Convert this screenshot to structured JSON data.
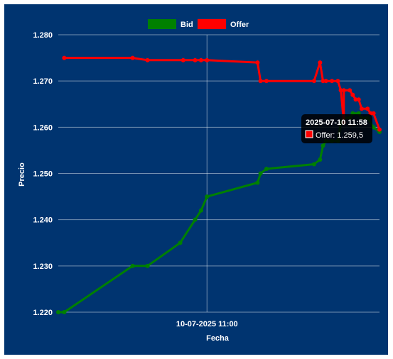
{
  "chart_data": {
    "type": "line",
    "title": "",
    "xlabel": "Fecha",
    "ylabel": "Precio",
    "x_range": [
      "2025-07-10 10:10",
      "2025-07-10 11:58"
    ],
    "ylim": [
      1.22,
      1.28
    ],
    "y_ticks": [
      "1.220",
      "1.230",
      "1.240",
      "1.250",
      "1.260",
      "1.270",
      "1.280"
    ],
    "x_ticks": [
      {
        "x": "2025-07-10 11:00",
        "label": "10-07-2025 11:00"
      }
    ],
    "grid": true,
    "legend_position": "top",
    "series": [
      {
        "name": "Bid",
        "color": "#008000",
        "points": [
          {
            "x": "2025-07-10 10:10",
            "y": 1.22
          },
          {
            "x": "2025-07-10 10:12",
            "y": 1.22
          },
          {
            "x": "2025-07-10 10:35",
            "y": 1.23
          },
          {
            "x": "2025-07-10 10:40",
            "y": 1.23
          },
          {
            "x": "2025-07-10 10:51",
            "y": 1.235
          },
          {
            "x": "2025-07-10 10:56",
            "y": 1.24
          },
          {
            "x": "2025-07-10 10:58",
            "y": 1.242
          },
          {
            "x": "2025-07-10 11:00",
            "y": 1.245
          },
          {
            "x": "2025-07-10 11:17",
            "y": 1.248
          },
          {
            "x": "2025-07-10 11:18",
            "y": 1.25
          },
          {
            "x": "2025-07-10 11:20",
            "y": 1.251
          },
          {
            "x": "2025-07-10 11:36",
            "y": 1.252
          },
          {
            "x": "2025-07-10 11:38",
            "y": 1.253
          },
          {
            "x": "2025-07-10 11:39",
            "y": 1.256
          },
          {
            "x": "2025-07-10 11:40",
            "y": 1.257
          },
          {
            "x": "2025-07-10 11:42",
            "y": 1.257
          },
          {
            "x": "2025-07-10 11:44",
            "y": 1.257
          },
          {
            "x": "2025-07-10 11:45",
            "y": 1.261
          },
          {
            "x": "2025-07-10 11:46",
            "y": 1.262
          },
          {
            "x": "2025-07-10 11:48",
            "y": 1.262
          },
          {
            "x": "2025-07-10 11:49",
            "y": 1.263
          },
          {
            "x": "2025-07-10 11:51",
            "y": 1.263
          },
          {
            "x": "2025-07-10 11:52",
            "y": 1.262
          },
          {
            "x": "2025-07-10 11:54",
            "y": 1.262
          },
          {
            "x": "2025-07-10 11:56",
            "y": 1.26
          },
          {
            "x": "2025-07-10 11:58",
            "y": 1.259
          },
          {
            "x": "2025-07-10 11:58",
            "y": 1.259
          }
        ]
      },
      {
        "name": "Offer",
        "color": "#ff0000",
        "points": [
          {
            "x": "2025-07-10 10:12",
            "y": 1.275
          },
          {
            "x": "2025-07-10 10:35",
            "y": 1.275
          },
          {
            "x": "2025-07-10 10:40",
            "y": 1.2745
          },
          {
            "x": "2025-07-10 10:52",
            "y": 1.2745
          },
          {
            "x": "2025-07-10 10:56",
            "y": 1.2745
          },
          {
            "x": "2025-07-10 10:58",
            "y": 1.2745
          },
          {
            "x": "2025-07-10 11:00",
            "y": 1.2745
          },
          {
            "x": "2025-07-10 11:17",
            "y": 1.274
          },
          {
            "x": "2025-07-10 11:18",
            "y": 1.27
          },
          {
            "x": "2025-07-10 11:20",
            "y": 1.27
          },
          {
            "x": "2025-07-10 11:36",
            "y": 1.27
          },
          {
            "x": "2025-07-10 11:38",
            "y": 1.274
          },
          {
            "x": "2025-07-10 11:39",
            "y": 1.27
          },
          {
            "x": "2025-07-10 11:40",
            "y": 1.27
          },
          {
            "x": "2025-07-10 11:42",
            "y": 1.27
          },
          {
            "x": "2025-07-10 11:44",
            "y": 1.27
          },
          {
            "x": "2025-07-10 11:45",
            "y": 1.268
          },
          {
            "x": "2025-07-10 11:46",
            "y": 1.261
          },
          {
            "x": "2025-07-10 11:46",
            "y": 1.268
          },
          {
            "x": "2025-07-10 11:48",
            "y": 1.268
          },
          {
            "x": "2025-07-10 11:49",
            "y": 1.267
          },
          {
            "x": "2025-07-10 11:50",
            "y": 1.266
          },
          {
            "x": "2025-07-10 11:51",
            "y": 1.266
          },
          {
            "x": "2025-07-10 11:52",
            "y": 1.264
          },
          {
            "x": "2025-07-10 11:54",
            "y": 1.264
          },
          {
            "x": "2025-07-10 11:55",
            "y": 1.263
          },
          {
            "x": "2025-07-10 11:56",
            "y": 1.263
          },
          {
            "x": "2025-07-10 11:58",
            "y": 1.2595
          }
        ]
      }
    ],
    "tooltip": {
      "title": "2025-07-10 11:58",
      "label": "Offer: 1.259,5",
      "series": "Offer",
      "x": "2025-07-10 11:58",
      "y": 1.2595
    }
  }
}
